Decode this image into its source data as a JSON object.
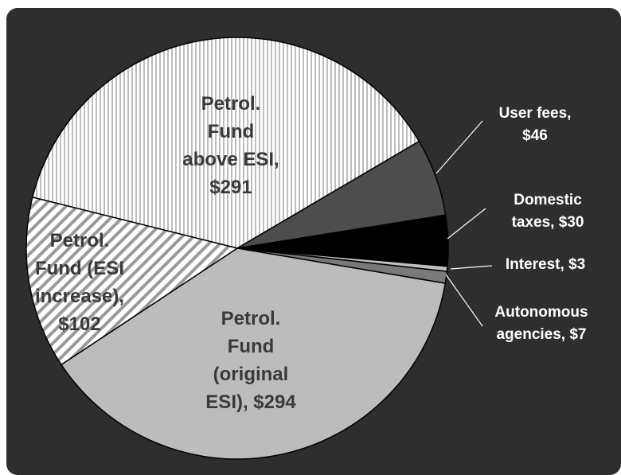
{
  "chart_data": {
    "type": "pie",
    "values": [
      291,
      46,
      30,
      3,
      7,
      294,
      102
    ],
    "value_labels": [
      "Petrol. Fund above ESI, $291",
      "User fees, $46",
      "Domestic taxes, $30",
      "Interest, $3",
      "Autonomous agencies, $7",
      "Petrol. Fund (original ESI), $294",
      "Petrol. Fund (ESI increase), $102"
    ],
    "colors": [
      "#dcdcdc",
      "#4d4d4d",
      "#000000",
      "#bfbfbf",
      "#7a7a7a",
      "#bcbcbc",
      "#ffffff"
    ],
    "patterns": [
      "vertical",
      null,
      null,
      null,
      null,
      null,
      "diagonal"
    ]
  }
}
